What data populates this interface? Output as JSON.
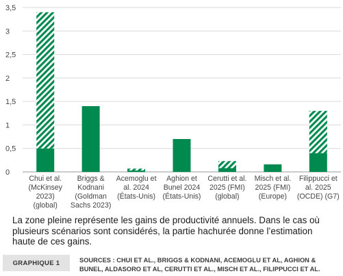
{
  "chart_data": {
    "type": "bar",
    "stacked": true,
    "categories": [
      [
        "Chui et al.",
        "(McKinsey",
        "2023)",
        "(global)"
      ],
      [
        "Briggs &",
        "Kodnani",
        "(Goldman",
        "Sachs 2023)"
      ],
      [
        "Acemoglu et",
        "al. 2024",
        "(États-Unis)"
      ],
      [
        "Aghion et",
        "Bunel 2024",
        "(États-Unis)"
      ],
      [
        "Cerutti et al.",
        "2025 (FMI)",
        "(global)"
      ],
      [
        "Misch et al.",
        "2025 (FMI)",
        "(Europe)"
      ],
      [
        "Filippucci et",
        "al. 2025",
        "(OCDE) (G7)"
      ]
    ],
    "series": [
      {
        "pattern": "solid",
        "values": [
          0.5,
          1.4,
          0.03,
          0.7,
          0.08,
          0.16,
          0.4
        ]
      },
      {
        "pattern": "hatched",
        "values": [
          2.9,
          0,
          0.04,
          0,
          0.15,
          0,
          0.9
        ]
      }
    ],
    "ylim": [
      0,
      3.5
    ],
    "yticks": [
      "0",
      "0,5",
      "1",
      "1,5",
      "2",
      "2,5",
      "3",
      "3,5"
    ],
    "grid": true,
    "colors": {
      "bar": "#008a50",
      "grid": "#d9d9d9",
      "axis": "#999999",
      "text": "#444444"
    }
  },
  "caption": "La zone pleine représente les gains de productivité annuels. Dans le cas où plusieurs scénarios sont considérés, la partie hachurée donne l’estimation haute de ces gains.",
  "figure_label": "GRAPHIQUE 1",
  "sources": "SOURCES : CHUI ET AL., BRIGGS & KODNANI, ACEMOGLU ET AL, AGHION & BUNEL, ALDASORO ET AL, CERUTTI ET AL., MISCH ET AL., FILIPPUCCI ET AL."
}
